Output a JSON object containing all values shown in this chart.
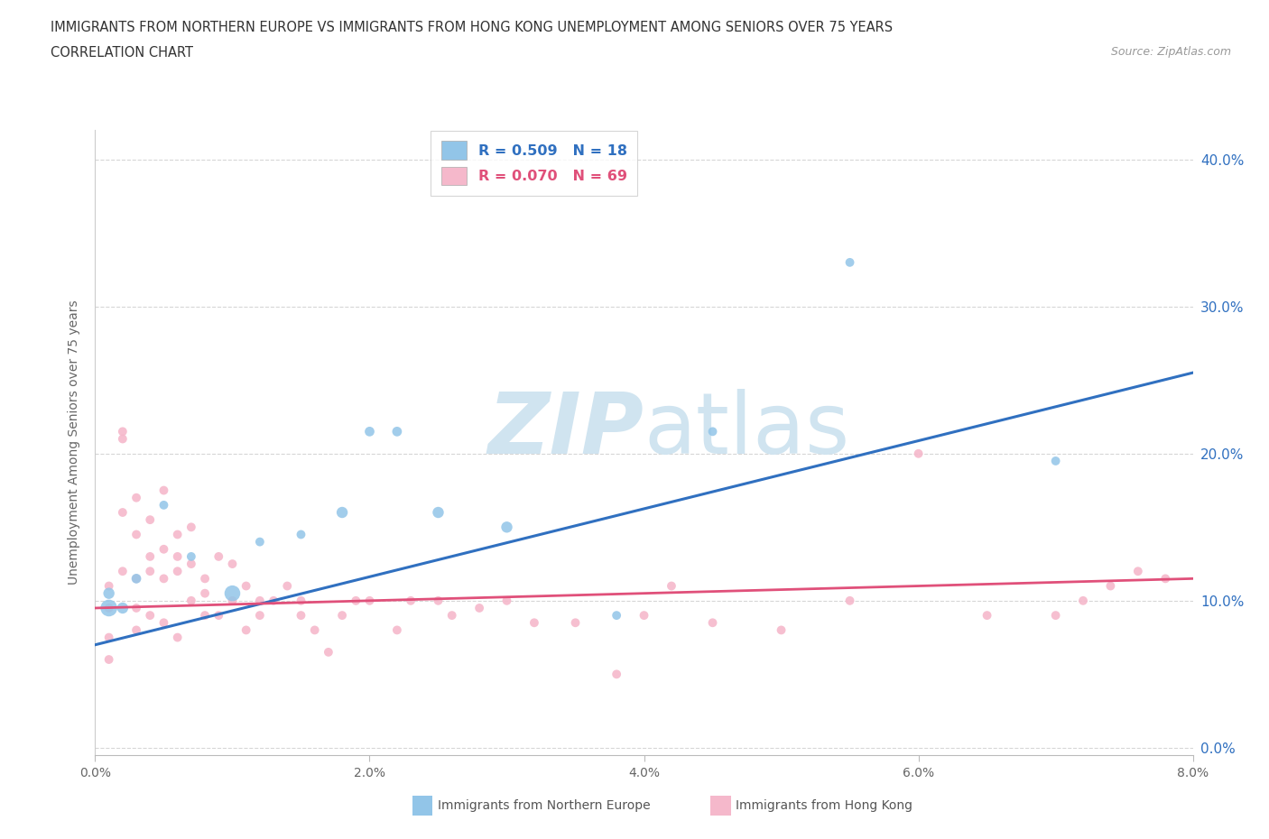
{
  "title_line1": "IMMIGRANTS FROM NORTHERN EUROPE VS IMMIGRANTS FROM HONG KONG UNEMPLOYMENT AMONG SENIORS OVER 75 YEARS",
  "title_line2": "CORRELATION CHART",
  "source": "Source: ZipAtlas.com",
  "xlabel_blue": "Immigrants from Northern Europe",
  "xlabel_pink": "Immigrants from Hong Kong",
  "ylabel": "Unemployment Among Seniors over 75 years",
  "blue_R": 0.509,
  "blue_N": 18,
  "pink_R": 0.07,
  "pink_N": 69,
  "blue_color": "#92c5e8",
  "pink_color": "#f5b8cb",
  "blue_line_color": "#3070c0",
  "pink_line_color": "#e0507a",
  "watermark_color": "#d0e4f0",
  "xlim": [
    0.0,
    0.08
  ],
  "ylim": [
    -0.005,
    0.42
  ],
  "yticks": [
    0.0,
    0.1,
    0.2,
    0.3,
    0.4
  ],
  "xticks": [
    0.0,
    0.02,
    0.04,
    0.06,
    0.08
  ],
  "blue_x": [
    0.001,
    0.001,
    0.002,
    0.003,
    0.005,
    0.007,
    0.01,
    0.012,
    0.015,
    0.018,
    0.02,
    0.022,
    0.025,
    0.03,
    0.038,
    0.045,
    0.055,
    0.07
  ],
  "blue_y": [
    0.095,
    0.105,
    0.095,
    0.115,
    0.165,
    0.13,
    0.105,
    0.14,
    0.145,
    0.16,
    0.215,
    0.215,
    0.16,
    0.15,
    0.09,
    0.215,
    0.33,
    0.195
  ],
  "blue_size": [
    180,
    80,
    80,
    60,
    50,
    50,
    160,
    50,
    50,
    80,
    60,
    60,
    80,
    80,
    50,
    50,
    50,
    50
  ],
  "pink_x": [
    0.001,
    0.001,
    0.001,
    0.001,
    0.002,
    0.002,
    0.002,
    0.002,
    0.003,
    0.003,
    0.003,
    0.003,
    0.003,
    0.004,
    0.004,
    0.004,
    0.004,
    0.005,
    0.005,
    0.005,
    0.005,
    0.006,
    0.006,
    0.006,
    0.006,
    0.007,
    0.007,
    0.007,
    0.008,
    0.008,
    0.008,
    0.009,
    0.009,
    0.01,
    0.01,
    0.011,
    0.011,
    0.012,
    0.012,
    0.013,
    0.014,
    0.015,
    0.015,
    0.016,
    0.017,
    0.018,
    0.019,
    0.02,
    0.022,
    0.023,
    0.025,
    0.026,
    0.028,
    0.03,
    0.032,
    0.035,
    0.038,
    0.04,
    0.042,
    0.045,
    0.05,
    0.055,
    0.06,
    0.065,
    0.07,
    0.072,
    0.074,
    0.076,
    0.078
  ],
  "pink_y": [
    0.095,
    0.11,
    0.075,
    0.06,
    0.215,
    0.21,
    0.16,
    0.12,
    0.17,
    0.145,
    0.115,
    0.095,
    0.08,
    0.155,
    0.13,
    0.12,
    0.09,
    0.175,
    0.135,
    0.115,
    0.085,
    0.145,
    0.13,
    0.12,
    0.075,
    0.15,
    0.125,
    0.1,
    0.115,
    0.105,
    0.09,
    0.13,
    0.09,
    0.125,
    0.1,
    0.11,
    0.08,
    0.1,
    0.09,
    0.1,
    0.11,
    0.1,
    0.09,
    0.08,
    0.065,
    0.09,
    0.1,
    0.1,
    0.08,
    0.1,
    0.1,
    0.09,
    0.095,
    0.1,
    0.085,
    0.085,
    0.05,
    0.09,
    0.11,
    0.085,
    0.08,
    0.1,
    0.2,
    0.09,
    0.09,
    0.1,
    0.11,
    0.12,
    0.115
  ],
  "pink_size": [
    50,
    50,
    50,
    50,
    50,
    50,
    50,
    50,
    50,
    50,
    50,
    50,
    50,
    50,
    50,
    50,
    50,
    50,
    50,
    50,
    50,
    50,
    50,
    50,
    50,
    50,
    50,
    50,
    50,
    50,
    50,
    50,
    50,
    50,
    50,
    50,
    50,
    50,
    50,
    50,
    50,
    50,
    50,
    50,
    50,
    50,
    50,
    50,
    50,
    50,
    50,
    50,
    50,
    50,
    50,
    50,
    50,
    50,
    50,
    50,
    50,
    50,
    50,
    50,
    50,
    50,
    50,
    50,
    50
  ],
  "blue_trend_x0": 0.0,
  "blue_trend_y0": 0.07,
  "blue_trend_x1": 0.08,
  "blue_trend_y1": 0.255,
  "pink_trend_x0": 0.0,
  "pink_trend_y0": 0.095,
  "pink_trend_x1": 0.08,
  "pink_trend_y1": 0.115
}
